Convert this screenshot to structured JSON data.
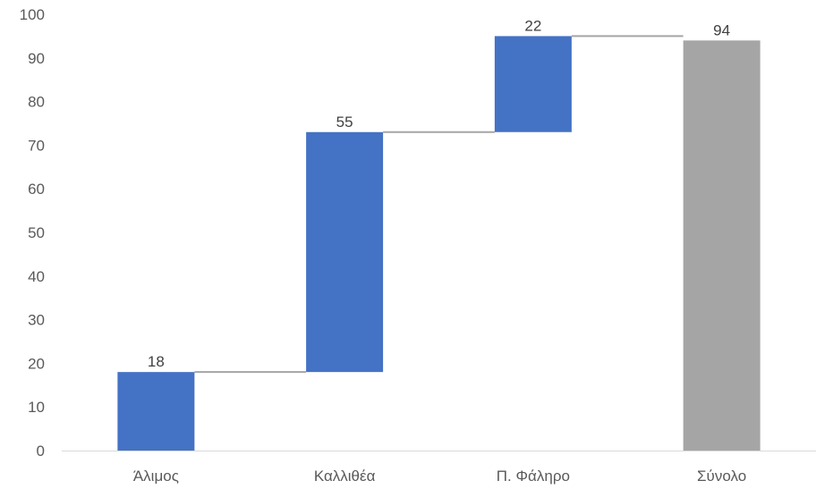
{
  "chart_data": {
    "type": "bar",
    "subtype": "waterfall",
    "title": "",
    "xlabel": "",
    "ylabel": "",
    "categories": [
      "Άλιμος",
      "Καλλιθέα",
      "Π. Φάληρο",
      "Σύνολο"
    ],
    "values": [
      18,
      55,
      22,
      94
    ],
    "is_total": [
      false,
      false,
      false,
      true
    ],
    "data_labels": [
      "18",
      "55",
      "22",
      "94"
    ],
    "ylim": [
      0,
      100
    ],
    "yticks": [
      0,
      10,
      20,
      30,
      40,
      50,
      60,
      70,
      80,
      90,
      100
    ],
    "grid": false,
    "legend": "none",
    "colors": {
      "increase": "#4472C4",
      "total": "#A5A5A5",
      "connector": "#A5A5A5",
      "axis": "#D9D9D9"
    }
  }
}
